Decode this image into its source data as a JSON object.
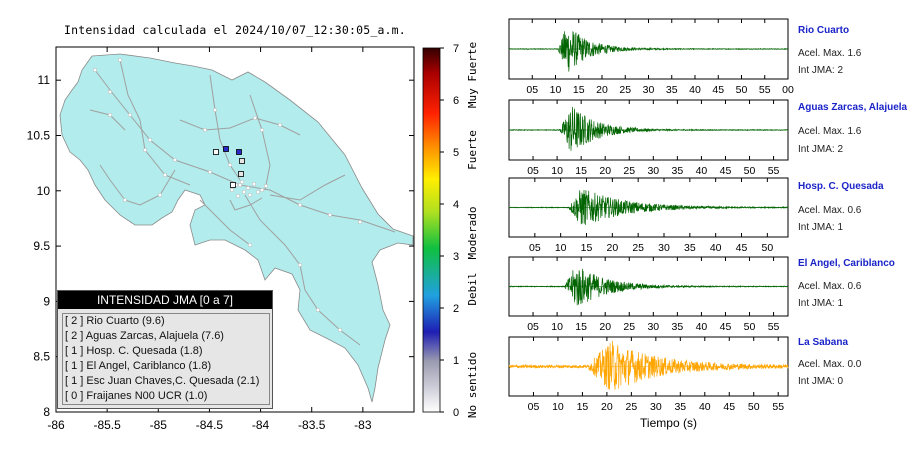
{
  "map": {
    "title": "Intensidad calculada el 2024/10/07_12:30:05_a.m.",
    "x_ticks": [
      "-86",
      "-85.5",
      "-85",
      "-84.5",
      "-84",
      "-83.5",
      "-83"
    ],
    "y_ticks": [
      "8",
      "8.5",
      "9",
      "9.5",
      "10",
      "10.5",
      "11"
    ],
    "colors": {
      "land": "#b3ecec",
      "sea": "#ffffff",
      "roads": "#a8a8a8",
      "border": "#888888"
    }
  },
  "colorbar": {
    "ticks": [
      "0",
      "1",
      "2",
      "3",
      "4",
      "5",
      "6",
      "7"
    ],
    "labels": [
      "No sentido",
      "Debil",
      "Moderado",
      "Fuerte",
      "Muy Fuerte"
    ]
  },
  "legend": {
    "title": "INTENSIDAD JMA [0 a 7]",
    "items": [
      "[ 2 ]  Rio Cuarto (9.6)",
      "[ 2 ]  Aguas Zarcas, Alajuela (7.6)",
      "[ 1 ]  Hosp. C. Quesada (1.8)",
      "[ 1 ]  El Angel, Cariblanco (1.8)",
      "[ 1 ]  Esc Juan Chaves,C. Quesada (2.1)",
      "[ 0 ]  Fraijanes N00 UCR (1.0)"
    ]
  },
  "waveforms": {
    "x_label": "Tiempo (s)",
    "stations": [
      {
        "name": "Rio Cuarto",
        "acel": "Acel. Max. 1.6",
        "int": "Int JMA: 2",
        "color": "#006400",
        "ticks": [
          "05",
          "10",
          "15",
          "20",
          "25",
          "30",
          "35",
          "40",
          "45",
          "50",
          "55",
          "00"
        ]
      },
      {
        "name": "Aguas Zarcas, Alajuela",
        "acel": "Acel. Max. 1.6",
        "int": "Int JMA: 2",
        "color": "#006400",
        "ticks": [
          "05",
          "10",
          "15",
          "20",
          "25",
          "30",
          "35",
          "40",
          "45",
          "50",
          "55"
        ]
      },
      {
        "name": "Hosp. C. Quesada",
        "acel": "Acel. Max. 0.6",
        "int": "Int JMA: 1",
        "color": "#006400",
        "ticks": [
          "05",
          "10",
          "15",
          "20",
          "25",
          "30",
          "35",
          "40",
          "45",
          "50"
        ]
      },
      {
        "name": "El Angel, Cariblanco",
        "acel": "Acel. Max. 0.6",
        "int": "Int JMA: 1",
        "color": "#006400",
        "ticks": [
          "05",
          "10",
          "15",
          "20",
          "25",
          "30",
          "35",
          "40",
          "45",
          "50",
          "55"
        ]
      },
      {
        "name": "La Sabana",
        "acel": "Acel. Max. 0.0",
        "int": "Int JMA: 0",
        "color": "#ffa500",
        "ticks": [
          "05",
          "10",
          "15",
          "20",
          "25",
          "30",
          "35",
          "40",
          "45",
          "50",
          "55"
        ]
      }
    ]
  },
  "chart_data": [
    {
      "type": "map",
      "title": "Intensidad calculada el 2024/10/07_12:30:05_a.m.",
      "xlim": [
        -86,
        -82.5
      ],
      "ylim": [
        8,
        11.3
      ],
      "stations": [
        {
          "name": "Rio Cuarto",
          "intensity": 2,
          "value": 9.6
        },
        {
          "name": "Aguas Zarcas, Alajuela",
          "intensity": 2,
          "value": 7.6
        },
        {
          "name": "Hosp. C. Quesada",
          "intensity": 1,
          "value": 1.8
        },
        {
          "name": "El Angel, Cariblanco",
          "intensity": 1,
          "value": 1.8
        },
        {
          "name": "Esc Juan Chaves,C. Quesada",
          "intensity": 1,
          "value": 2.1
        },
        {
          "name": "Fraijanes N00 UCR",
          "intensity": 0,
          "value": 1.0
        }
      ],
      "colorbar": {
        "range": [
          0,
          7
        ],
        "ticks": [
          0,
          1,
          2,
          3,
          4,
          5,
          6,
          7
        ]
      }
    },
    {
      "type": "line",
      "x_label": "Tiempo (s)",
      "series": [
        {
          "name": "Rio Cuarto",
          "xlim": [
            0,
            60
          ],
          "onset": 10.5,
          "peak_time": 12.5,
          "amp": 0.95,
          "decay": 4.5
        },
        {
          "name": "Aguas Zarcas, Alajuela",
          "xlim": [
            0,
            58
          ],
          "onset": 10.5,
          "peak_time": 13,
          "amp": 0.95,
          "decay": 5
        },
        {
          "name": "Hosp. C. Quesada",
          "xlim": [
            0,
            54
          ],
          "onset": 11.5,
          "peak_time": 14,
          "amp": 0.75,
          "decay": 8
        },
        {
          "name": "El Angel, Cariblanco",
          "xlim": [
            0,
            58
          ],
          "onset": 11.5,
          "peak_time": 14,
          "amp": 0.85,
          "decay": 6
        },
        {
          "name": "La Sabana",
          "xlim": [
            0,
            57
          ],
          "onset": 16,
          "peak_time": 21,
          "amp": 0.95,
          "decay": 9
        }
      ]
    }
  ]
}
